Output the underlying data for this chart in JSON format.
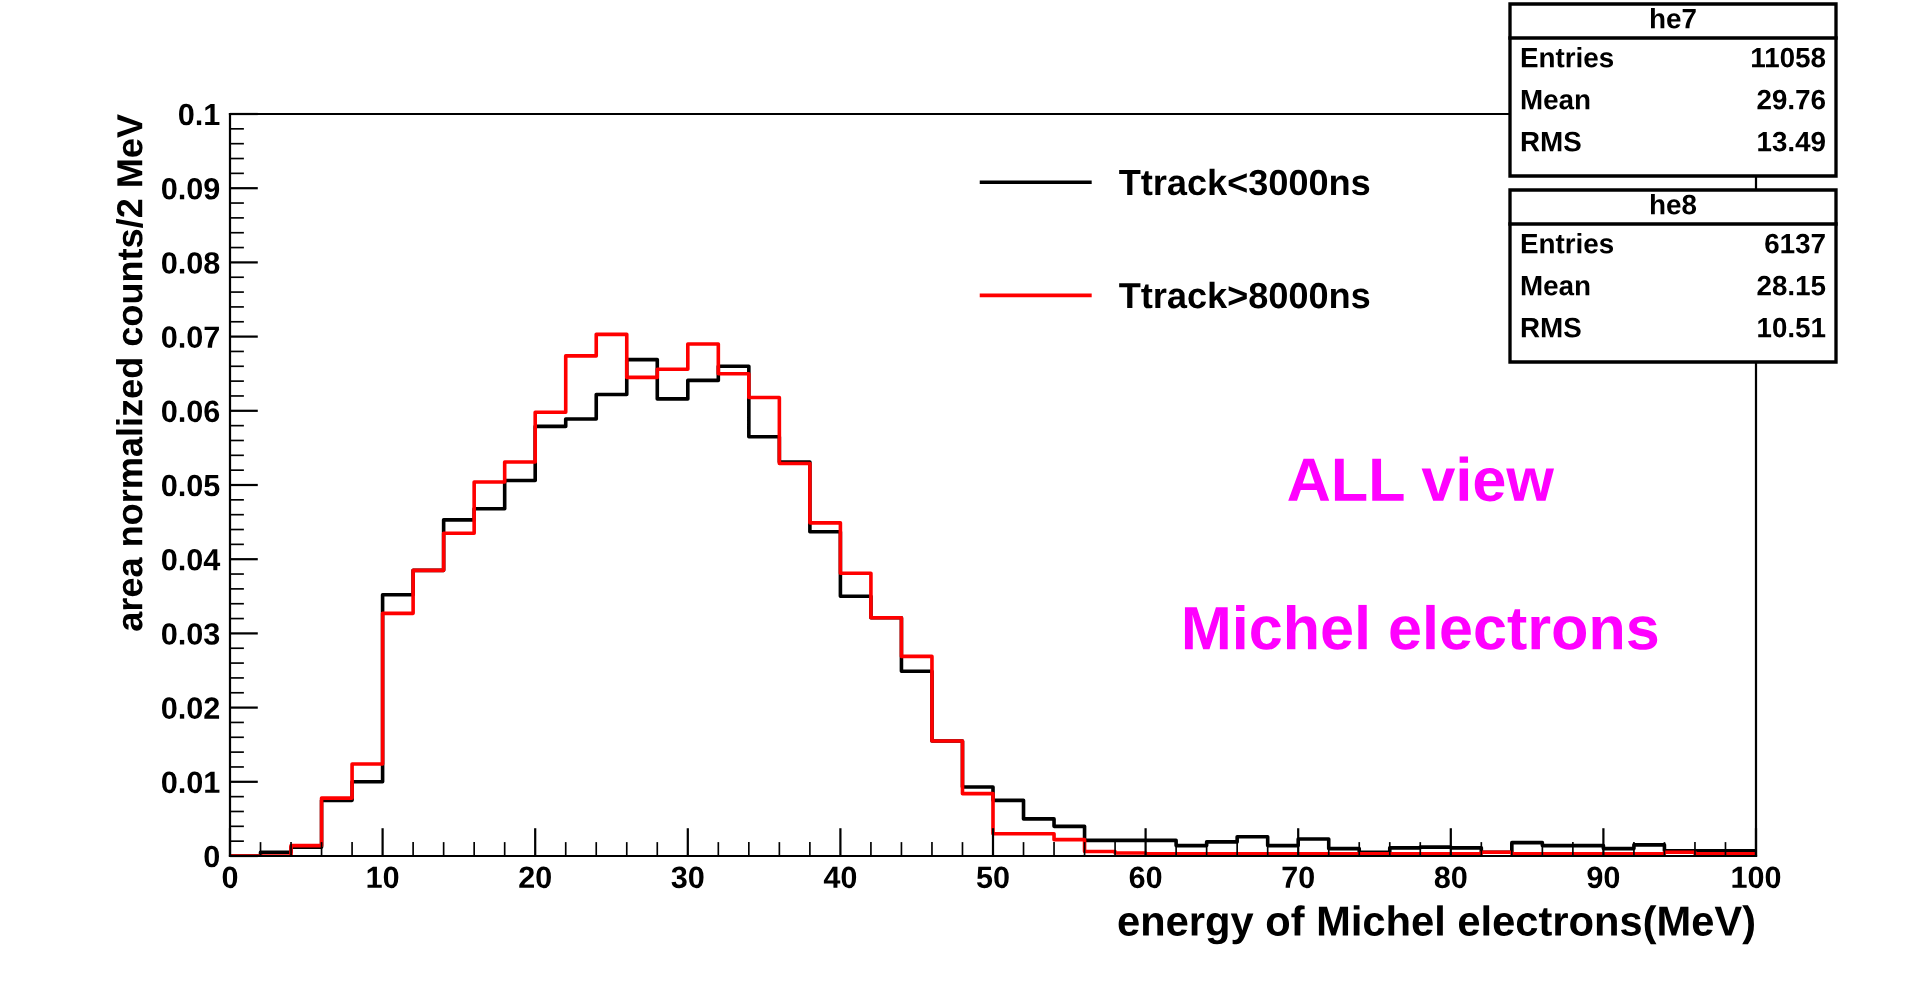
{
  "chart_data": {
    "type": "histogram",
    "xlabel": "energy of Michel electrons(MeV)",
    "ylabel": "area normalized counts/2 MeV",
    "bins": [
      0,
      2,
      4,
      6,
      8,
      10,
      12,
      14,
      16,
      18,
      20,
      22,
      24,
      26,
      28,
      30,
      32,
      34,
      36,
      38,
      40,
      42,
      44,
      46,
      48,
      50,
      52,
      54,
      56,
      58,
      60,
      62,
      64,
      66,
      68,
      70,
      72,
      74,
      76,
      78,
      80,
      82,
      84,
      86,
      88,
      90,
      92,
      94,
      96,
      98,
      100
    ],
    "series": [
      {
        "name": "Ttrack<3000ns",
        "color": "#000000",
        "values": [
          0,
          0.0005,
          0.0012,
          0.0075,
          0.01,
          0.0352,
          0.0385,
          0.0453,
          0.0468,
          0.0506,
          0.0579,
          0.0589,
          0.0622,
          0.0669,
          0.0616,
          0.0641,
          0.066,
          0.0565,
          0.0531,
          0.0437,
          0.035,
          0.0321,
          0.0249,
          0.0155,
          0.0093,
          0.0075,
          0.005,
          0.004,
          0.0021,
          0.0021,
          0.0021,
          0.0014,
          0.0019,
          0.0026,
          0.0014,
          0.0023,
          0.001,
          0.0005,
          0.0011,
          0.0012,
          0.0011,
          0.0005,
          0.0018,
          0.0014,
          0.0014,
          0.001,
          0.0015,
          0.0007,
          0.0007,
          0.0007
        ]
      },
      {
        "name": "Ttrack>8000ns",
        "color": "#ff0000",
        "values": [
          0,
          0,
          0.0014,
          0.0078,
          0.0124,
          0.0327,
          0.0385,
          0.0435,
          0.0504,
          0.0531,
          0.0598,
          0.0674,
          0.0703,
          0.0645,
          0.0656,
          0.069,
          0.065,
          0.0618,
          0.0529,
          0.0449,
          0.0381,
          0.0321,
          0.0269,
          0.0155,
          0.0084,
          0.003,
          0.003,
          0.0022,
          0.0006,
          0.0004,
          0.0003,
          0.0003,
          0.0003,
          0.0003,
          0.0003,
          0.0003,
          0.0003,
          0.0003,
          0.0003,
          0.0003,
          0.0003,
          0.0005,
          0.0003,
          0.0003,
          0.0003,
          0.0003,
          0.0003,
          0.0005,
          0.0003,
          0.0003
        ]
      }
    ],
    "xlim": [
      0,
      100
    ],
    "xticks": [
      0,
      10,
      20,
      30,
      40,
      50,
      60,
      70,
      80,
      90,
      100
    ],
    "ylim": [
      0,
      0.1
    ],
    "yticks": [
      0,
      0.01,
      0.02,
      0.03,
      0.04,
      0.05,
      0.06,
      0.07,
      0.08,
      0.09,
      0.1
    ],
    "grid": false,
    "legend": "top",
    "annotations": [
      "ALL view",
      "Michel electrons",
      "he7",
      "Entries",
      "11058",
      "Mean",
      "29.76",
      "RMS",
      "13.49",
      "he8",
      "Entries",
      "6137",
      "Mean",
      "28.15",
      "RMS",
      "10.51"
    ]
  }
}
